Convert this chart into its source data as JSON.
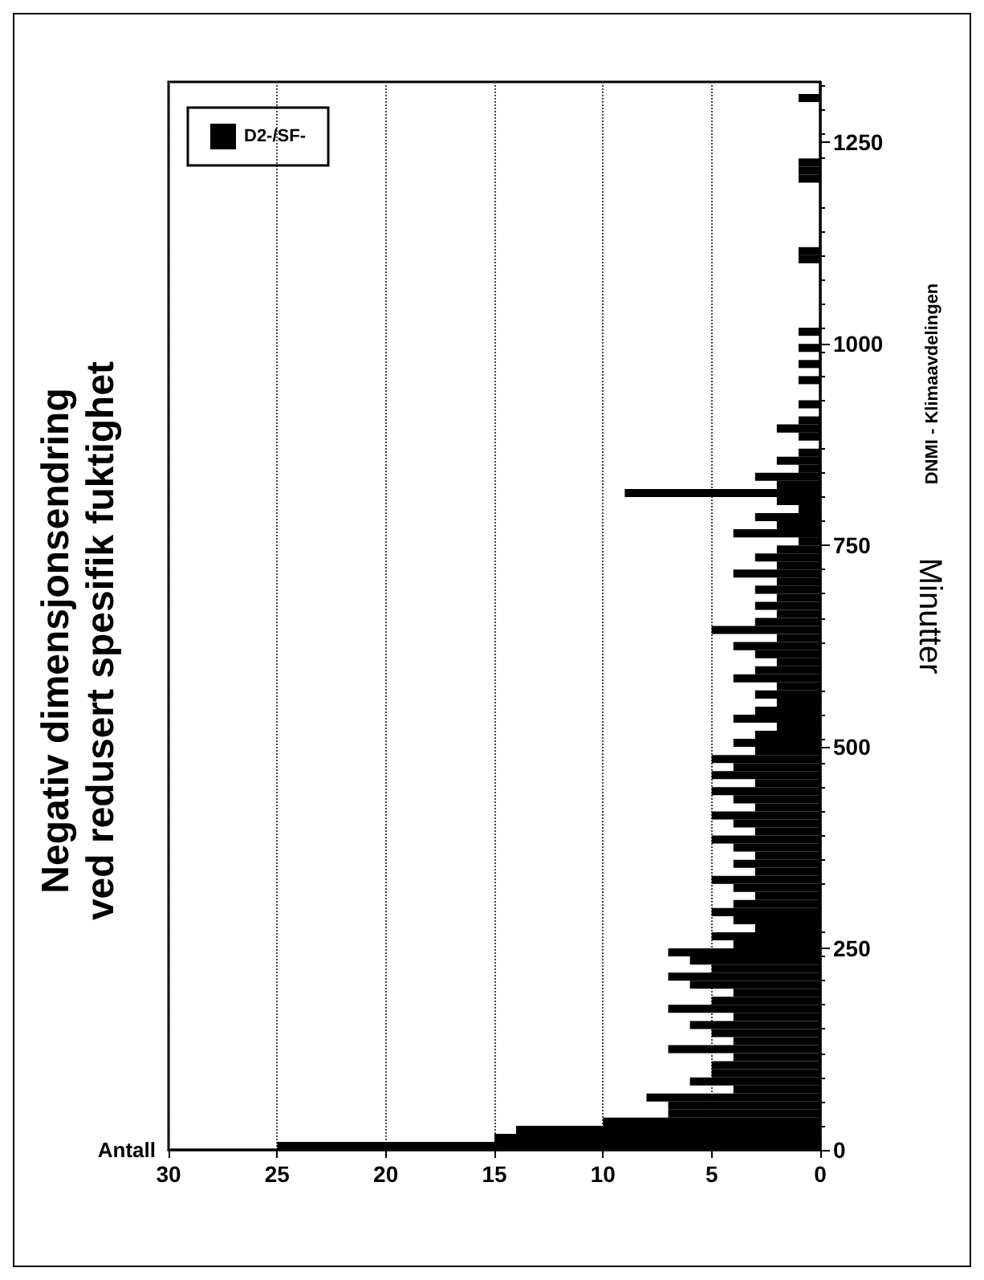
{
  "chart_data": {
    "type": "histogram",
    "orientation": "horizontal",
    "title": "Negativ dimensjonsendring\nved redusert spesifik fuktighet",
    "xlabel": "Antall",
    "ylabel": "Minutter",
    "annotations": [
      "DNMI - Klimaavdelingen"
    ],
    "bins": [
      0,
      10,
      20,
      30,
      40,
      50,
      60,
      70,
      80,
      90,
      100,
      110,
      120,
      130,
      140,
      150,
      160,
      170,
      180,
      190,
      200,
      210,
      220,
      230,
      240,
      250,
      260,
      270,
      280,
      290,
      300,
      310,
      320,
      330,
      340,
      350,
      360,
      370,
      380,
      390,
      400,
      410,
      420,
      430,
      440,
      450,
      460,
      470,
      480,
      490,
      500,
      510,
      520,
      530,
      540,
      550,
      560,
      570,
      580,
      590,
      600,
      610,
      620,
      630,
      640,
      650,
      660,
      670,
      680,
      690,
      700,
      710,
      720,
      730,
      740,
      750,
      760,
      770,
      780,
      790,
      800,
      810,
      820,
      830,
      840,
      850,
      860,
      870,
      880,
      890,
      900,
      910,
      920,
      930,
      940,
      950,
      960,
      970,
      980,
      990,
      1000,
      1010,
      1020,
      1030,
      1040,
      1050,
      1060,
      1070,
      1080,
      1090,
      1100,
      1110,
      1120,
      1130,
      1140,
      1150,
      1160,
      1170,
      1180,
      1190,
      1200,
      1210,
      1220,
      1230,
      1240,
      1250,
      1260,
      1270,
      1280,
      1290,
      1300,
      1310,
      1320
    ],
    "series": [
      {
        "name": "D2-/SF-",
        "color": "#000000",
        "values": [
          25,
          15,
          14,
          10,
          7,
          7,
          8,
          4,
          6,
          5,
          5,
          4,
          7,
          4,
          5,
          6,
          4,
          7,
          5,
          4,
          6,
          7,
          5,
          6,
          7,
          4,
          5,
          3,
          4,
          5,
          4,
          3,
          4,
          5,
          3,
          4,
          3,
          4,
          5,
          3,
          4,
          5,
          3,
          4,
          5,
          3,
          5,
          4,
          5,
          3,
          4,
          3,
          2,
          4,
          3,
          2,
          3,
          2,
          4,
          3,
          2,
          3,
          4,
          2,
          5,
          3,
          2,
          3,
          2,
          3,
          2,
          4,
          2,
          3,
          2,
          1,
          4,
          2,
          3,
          1,
          2,
          9,
          2,
          3,
          1,
          2,
          1,
          0,
          1,
          2,
          1,
          0,
          1,
          0,
          0,
          1,
          0,
          1,
          0,
          1,
          0,
          1,
          0,
          0,
          0,
          0,
          0,
          0,
          0,
          0,
          1,
          1,
          0,
          0,
          0,
          0,
          0,
          0,
          0,
          0,
          1,
          1,
          1,
          0,
          0,
          0,
          0,
          0,
          0,
          0,
          1,
          0
        ]
      }
    ],
    "xlim": [
      30,
      0
    ],
    "xticks": [
      30,
      25,
      20,
      15,
      10,
      5,
      0
    ],
    "ylim": [
      0,
      1325
    ],
    "yticks": [
      0,
      250,
      500,
      750,
      1000,
      1250
    ],
    "grid": "x",
    "legend": "top left"
  }
}
